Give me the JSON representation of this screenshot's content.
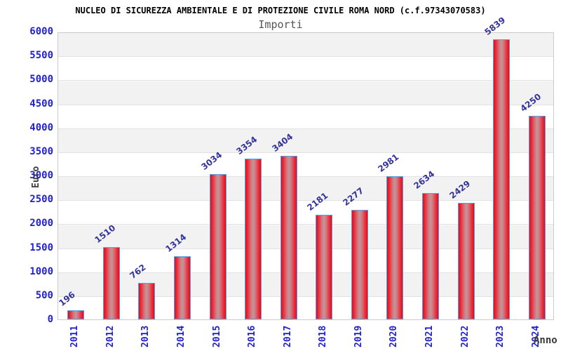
{
  "chart_data": {
    "type": "bar",
    "title": "NUCLEO DI SICUREZZA AMBIENTALE E DI PROTEZIONE CIVILE ROMA NORD (c.f.97343070583)",
    "subtitle": "Importi",
    "xlabel": "Anno",
    "ylabel": "Euro",
    "categories": [
      "2011",
      "2012",
      "2013",
      "2014",
      "2015",
      "2016",
      "2017",
      "2018",
      "2019",
      "2020",
      "2021",
      "2022",
      "2023",
      "2024"
    ],
    "values": [
      196,
      1510,
      762,
      1314,
      3034,
      3354,
      3404,
      2181,
      2277,
      2981,
      2634,
      2429,
      5839,
      4250
    ],
    "ylim": [
      0,
      6000
    ],
    "ytick_step": 500,
    "yticks": [
      0,
      500,
      1000,
      1500,
      2000,
      2500,
      3000,
      3500,
      4000,
      4500,
      5000,
      5500,
      6000
    ],
    "grid": "horizontal-bands-500",
    "legend": null,
    "colors": {
      "tick_label": "#2222cc",
      "value_label": "#333399",
      "bar_edge": "#db0e20",
      "bar_center": "#bd989b",
      "bar_border": "#5b9fdc",
      "band_gray": "#f2f2f2",
      "band_white": "#ffffff",
      "plot_border": "#cccccc",
      "axis_title": "#3a3a3a",
      "title": "#000000",
      "subtitle": "#555555",
      "background": "#ffffff"
    }
  }
}
